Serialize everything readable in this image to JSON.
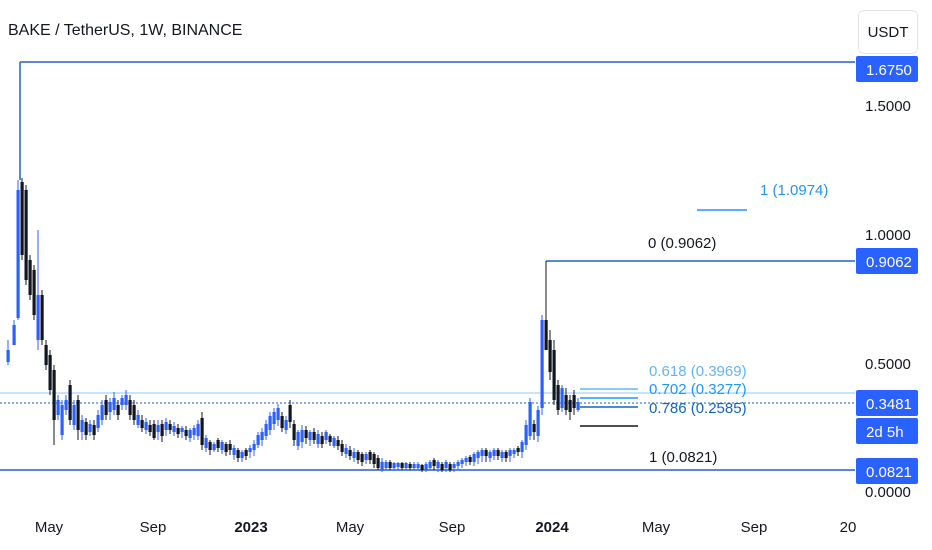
{
  "header": {
    "title": "BAKE / TetherUS, 1W, BINANCE",
    "currency_button": "USDT"
  },
  "chart_data": {
    "type": "candlestick",
    "title": "BAKE / TetherUS, 1W, BINANCE",
    "y_scale": "log",
    "y_ticks": [
      "1.5000",
      "1.0000",
      "0.5000",
      "0.0000"
    ],
    "y_tick_values": [
      1.5,
      1.0,
      0.5,
      0.0
    ],
    "x_ticks": [
      "May",
      "Sep",
      "2023",
      "May",
      "Sep",
      "2024",
      "May",
      "Sep",
      "20"
    ],
    "price_labels": [
      {
        "text": "1.6750",
        "value": 1.675
      },
      {
        "text": "0.9062",
        "value": 0.9062
      },
      {
        "text": "0.3481",
        "value": 0.3481
      },
      {
        "text": "2d 5h",
        "value": 0.3481
      },
      {
        "text": "0.0821",
        "value": 0.0821
      }
    ],
    "fib_levels": [
      {
        "label": "1 (1.0974)",
        "value": 1.0974,
        "color": "#2196f3"
      },
      {
        "label": "0 (0.9062)",
        "value": 0.9062,
        "color": "#131722"
      },
      {
        "label": "0.618 (0.3969)",
        "value": 0.3969,
        "color": "#64b5f6"
      },
      {
        "label": "0.702 (0.3277)",
        "value": 0.3277,
        "color": "#2196f3"
      },
      {
        "label": "0.786 (0.2585)",
        "value": 0.2585,
        "color": "#1565c0"
      },
      {
        "label": "1 (0.0821)",
        "value": 0.0821,
        "color": "#131722"
      }
    ],
    "colors": {
      "up": "#2962ff",
      "down": "#131722",
      "level": "#1e63c8",
      "accent": "#2962ff"
    }
  }
}
